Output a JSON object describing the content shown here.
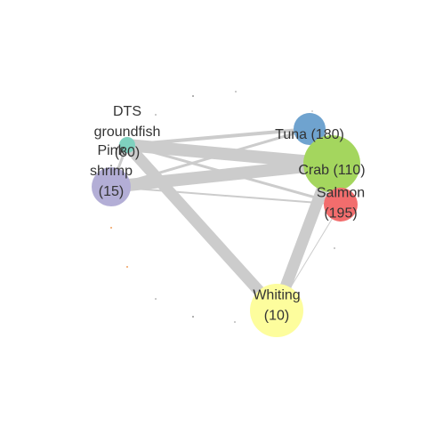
{
  "nodes": [
    {
      "id": "dts",
      "lines": [
        "DTS",
        "groundfish",
        "(80)"
      ],
      "color": "#7fd1bf"
    },
    {
      "id": "pink",
      "lines": [
        "Pink",
        "shrimp",
        "(15)"
      ],
      "color": "#b3aed6"
    },
    {
      "id": "tuna",
      "lines": [
        "Tuna (180)"
      ],
      "color": "#6fa3cf"
    },
    {
      "id": "crab",
      "lines": [
        "Crab (110)"
      ],
      "color": "#a4d65e"
    },
    {
      "id": "salmon",
      "lines": [
        "Salmon",
        "(195)"
      ],
      "color": "#f26d6d"
    },
    {
      "id": "whiting",
      "lines": [
        "Whiting",
        "(10)"
      ],
      "color": "#fdfd9d"
    }
  ],
  "edges": [
    {
      "source": "dts",
      "target": "crab"
    },
    {
      "source": "pink",
      "target": "crab"
    },
    {
      "source": "dts",
      "target": "whiting"
    },
    {
      "source": "crab",
      "target": "whiting"
    },
    {
      "source": "dts",
      "target": "tuna"
    },
    {
      "source": "pink",
      "target": "tuna"
    },
    {
      "source": "dts",
      "target": "salmon"
    },
    {
      "source": "pink",
      "target": "salmon"
    },
    {
      "source": "dts",
      "target": "pink"
    },
    {
      "source": "crab",
      "target": "tuna"
    },
    {
      "source": "crab",
      "target": "salmon"
    },
    {
      "source": "salmon",
      "target": "whiting"
    }
  ],
  "edge_color": "#cccccc"
}
